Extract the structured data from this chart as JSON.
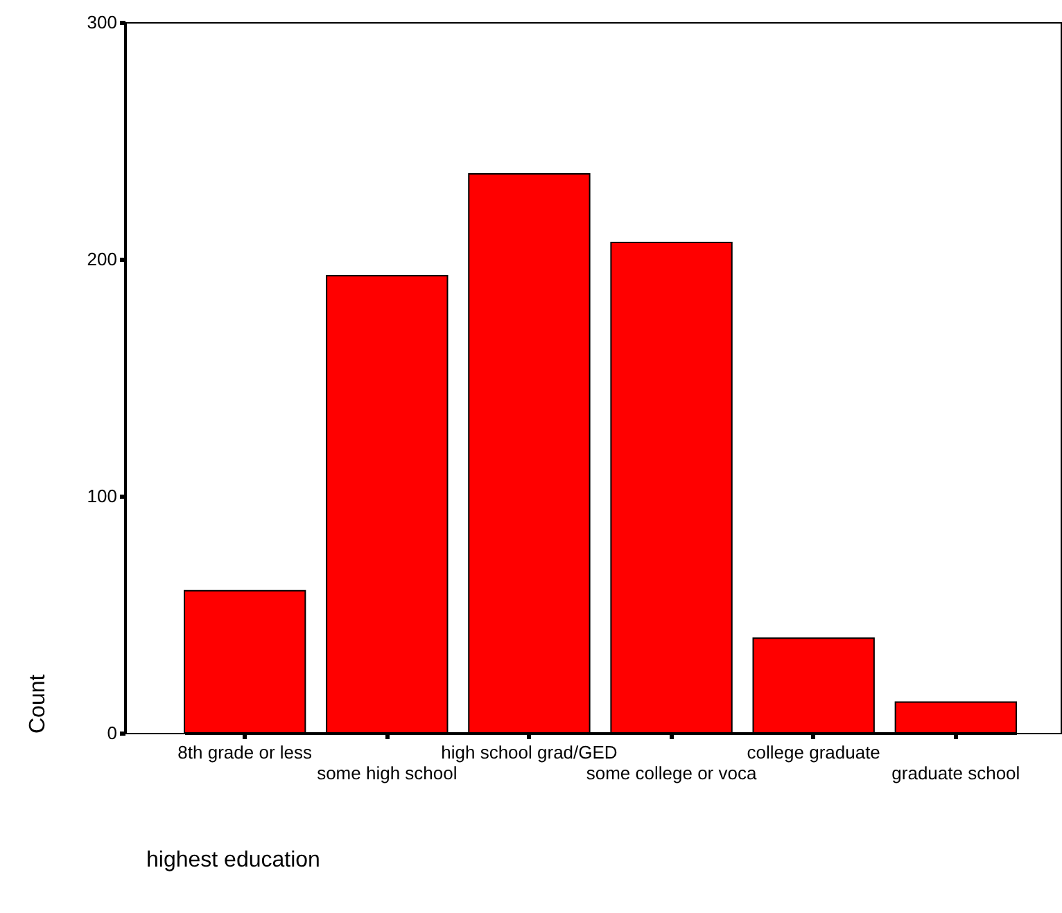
{
  "chart_data": {
    "type": "bar",
    "xlabel": "highest education",
    "ylabel": "Count",
    "categories": [
      "8th grade or less",
      "some high school",
      "high school grad/GED",
      "some college or voca",
      "college graduate",
      "graduate school"
    ],
    "values": [
      60,
      193,
      236,
      207,
      40,
      13
    ],
    "color": "#ff0000",
    "ylim": [
      0,
      300
    ],
    "yticks": [
      0,
      100,
      200,
      300
    ],
    "grid": false
  }
}
